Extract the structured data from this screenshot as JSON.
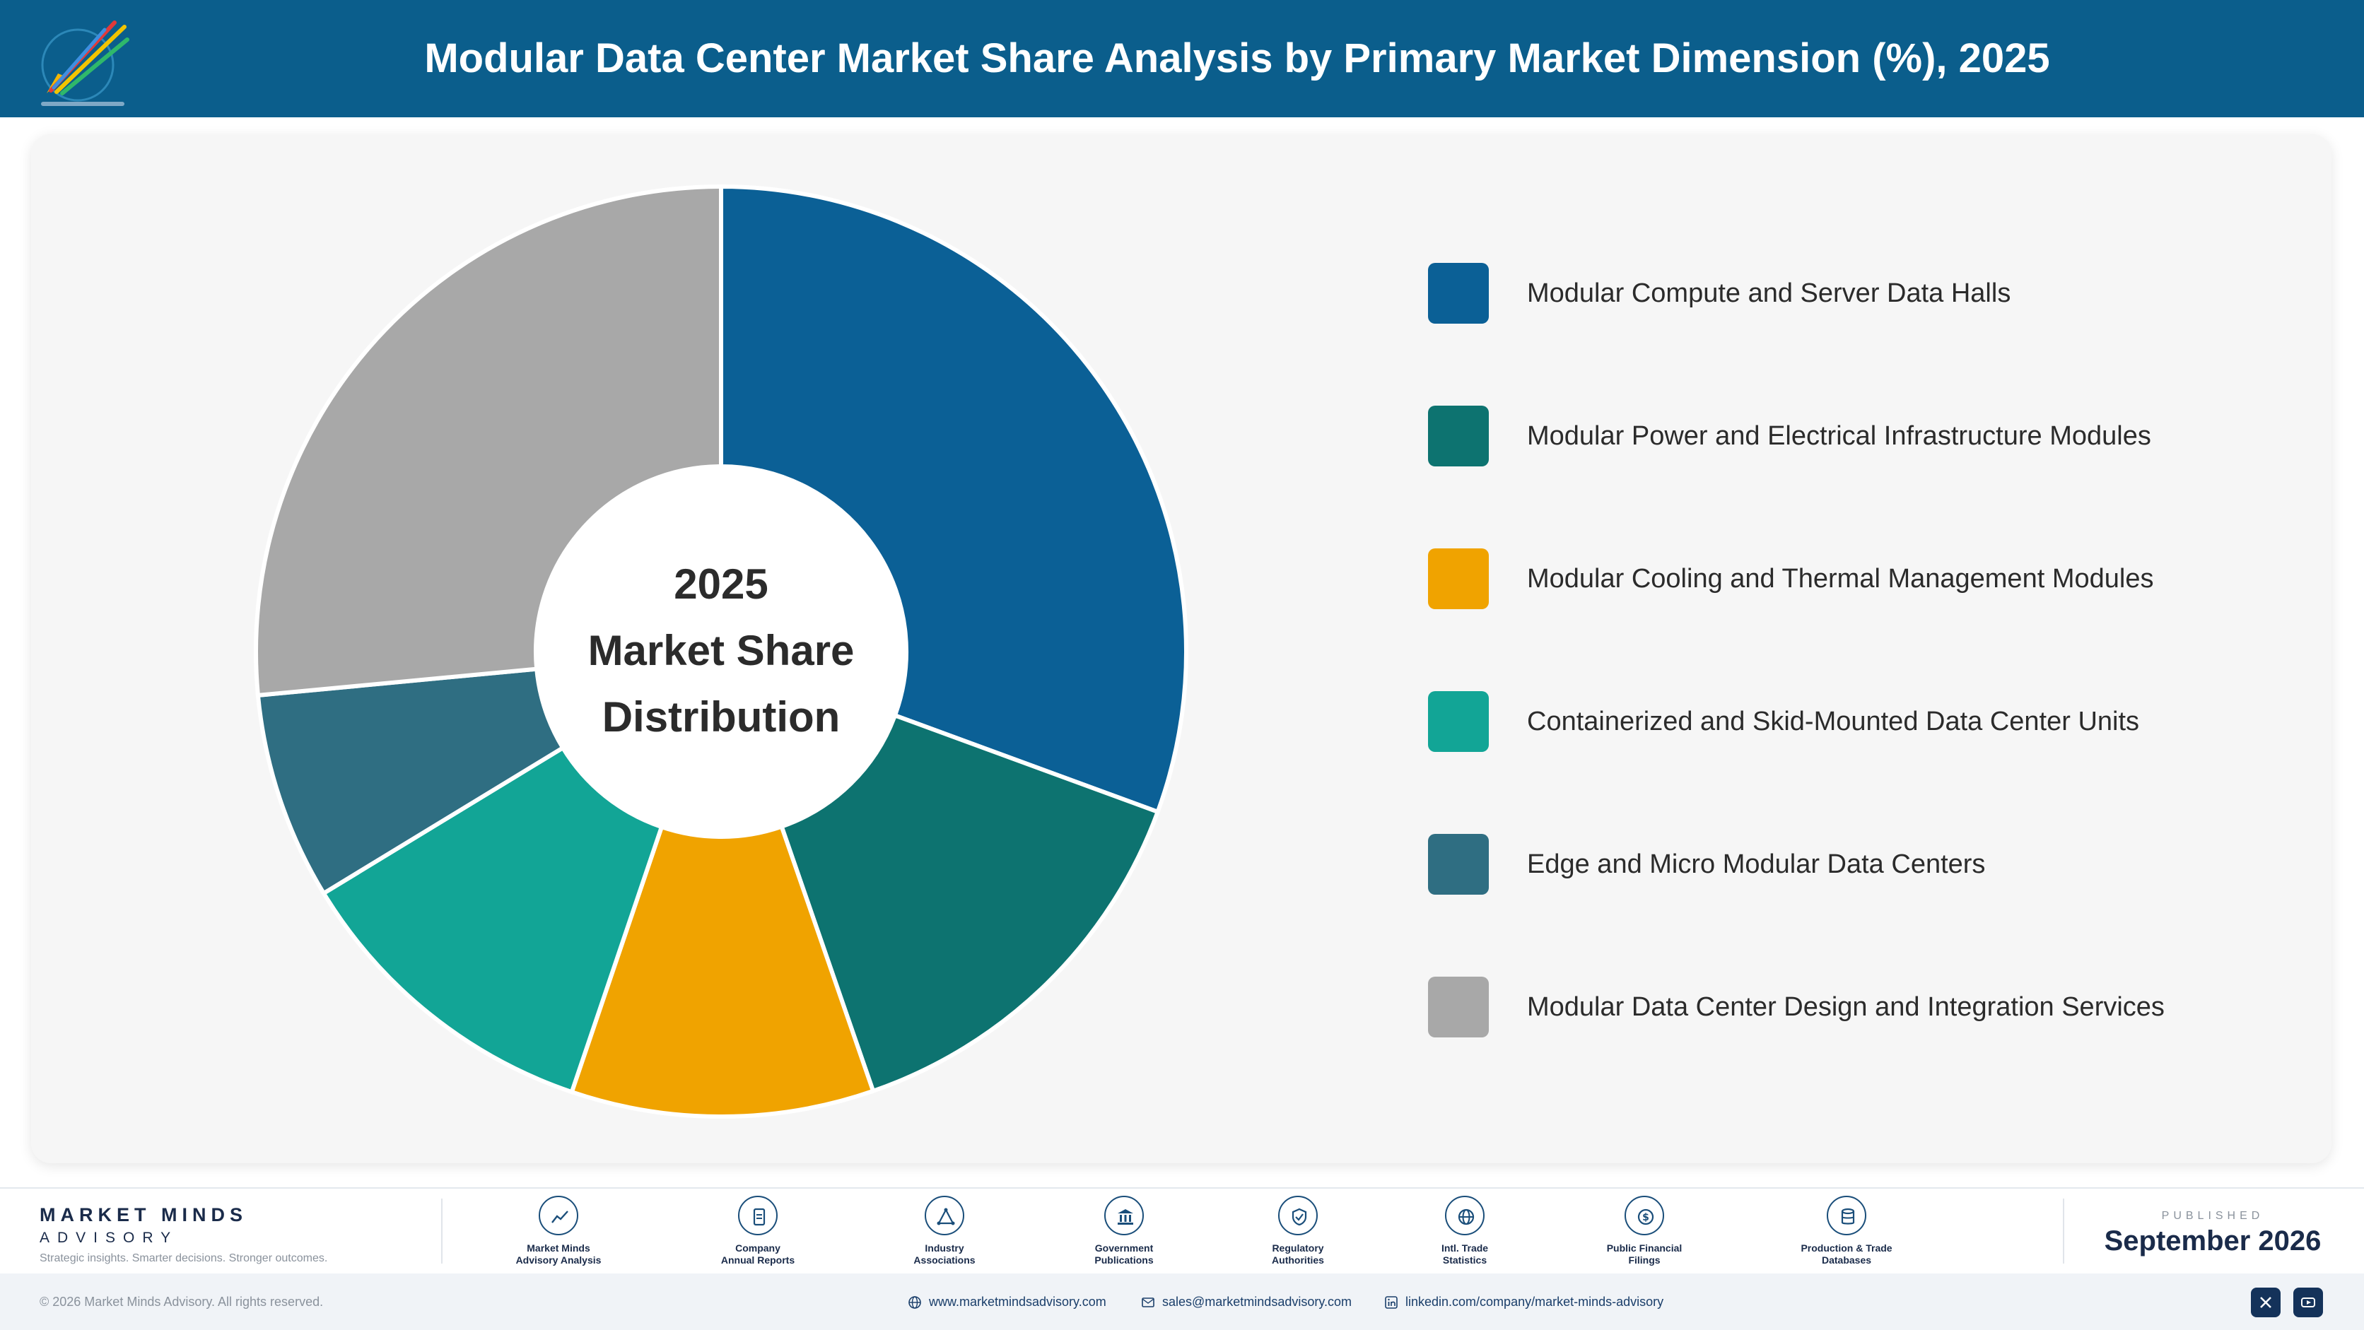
{
  "header": {
    "title": "Modular Data Center Market Share Analysis by Primary Market Dimension (%), 2025",
    "logo_icon": "market-minds-logo"
  },
  "chart_data": {
    "type": "pie",
    "style": "donut",
    "title": "Modular Data Center Market Share Analysis by Primary Market Dimension (%), 2025",
    "center_label": [
      "2025",
      "Market Share",
      "Distribution"
    ],
    "legend_position": "right",
    "categories": [
      "Modular Compute and Server Data Halls",
      "Modular Power and Electrical Infrastructure Modules",
      "Modular Cooling and Thermal Management Modules",
      "Containerized and Skid-Mounted Data Center Units",
      "Edge and Micro Modular Data Centers",
      "Modular Data Center Design and Integration Services"
    ],
    "values": [
      30.6,
      14.1,
      10.5,
      11.1,
      7.2,
      26.5
    ],
    "colors": [
      "#0b6096",
      "#0d7370",
      "#f0a300",
      "#12a596",
      "#2f6e82",
      "#a8a8a8"
    ]
  },
  "footer": {
    "brand_name": "MARKET MINDS",
    "brand_sub": "ADVISORY",
    "tagline": "Strategic insights. Smarter decisions. Stronger outcomes.",
    "sources": [
      {
        "line1": "Market Minds",
        "line2": "Advisory Analysis",
        "icon": "trend-chart-icon"
      },
      {
        "line1": "Company",
        "line2": "Annual Reports",
        "icon": "document-icon"
      },
      {
        "line1": "Industry",
        "line2": "Associations",
        "icon": "network-icon"
      },
      {
        "line1": "Government",
        "line2": "Publications",
        "icon": "government-building-icon"
      },
      {
        "line1": "Regulatory",
        "line2": "Authorities",
        "icon": "shield-check-icon"
      },
      {
        "line1": "Intl. Trade",
        "line2": "Statistics",
        "icon": "globe-icon"
      },
      {
        "line1": "Public Financial",
        "line2": "Filings",
        "icon": "dollar-coin-icon"
      },
      {
        "line1": "Production & Trade",
        "line2": "Databases",
        "icon": "database-icon"
      }
    ],
    "published_label": "PUBLISHED",
    "published_date": "September 2026"
  },
  "bottom_bar": {
    "copyright": "© 2026 Market Minds Advisory. All rights reserved.",
    "website": "www.marketmindsadvisory.com",
    "email": "sales@marketmindsadvisory.com",
    "linkedin": "linkedin.com/company/market-minds-advisory",
    "social": [
      "x-icon",
      "youtube-icon"
    ]
  }
}
